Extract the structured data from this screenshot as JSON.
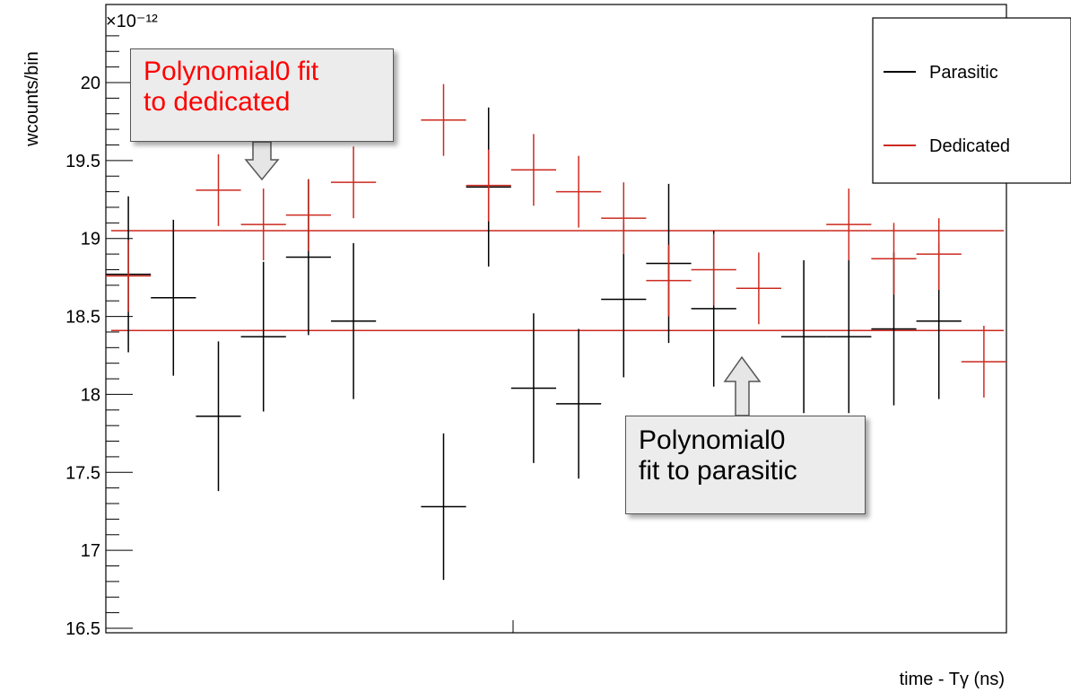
{
  "chart_data": {
    "type": "scatter",
    "title": "",
    "xlabel": "time - Tγ (ns)",
    "ylabel": "wcounts/bin",
    "y_exponent": "×10⁻¹²",
    "ylim": [
      16.45,
      20.35
    ],
    "y_ticks": [
      "16.5",
      "17",
      "17.5",
      "18",
      "18.5",
      "19",
      "19.5",
      "20"
    ],
    "n_bins": 20,
    "grid": false,
    "legend_position": "top-right",
    "series": [
      {
        "name": "Parasitic",
        "color": "#000000",
        "values": [
          18.77,
          18.62,
          17.86,
          18.37,
          18.88,
          18.47,
          17.28,
          19.33,
          18.04,
          17.94,
          18.61,
          18.84,
          18.55,
          18.37,
          18.37,
          18.42,
          18.47
        ],
        "errors": [
          0.5,
          0.5,
          0.48,
          0.48,
          0.5,
          0.5,
          0.47,
          0.51,
          0.48,
          0.48,
          0.5,
          0.51,
          0.5,
          0.49,
          0.49,
          0.49,
          0.5
        ],
        "bins": [
          0,
          1,
          2,
          3,
          4,
          5,
          7,
          8,
          9,
          10,
          11,
          12,
          13,
          15,
          16,
          17,
          18
        ]
      },
      {
        "name": "Dedicated",
        "color": "#cc2a1f",
        "values": [
          18.76,
          19.31,
          19.09,
          19.15,
          19.36,
          19.76,
          19.34,
          19.44,
          19.3,
          19.13,
          18.73,
          18.8,
          18.68,
          19.09,
          18.87,
          18.9,
          18.21
        ],
        "errors": [
          0.23,
          0.23,
          0.23,
          0.23,
          0.23,
          0.23,
          0.23,
          0.23,
          0.23,
          0.23,
          0.23,
          0.23,
          0.23,
          0.23,
          0.23,
          0.23,
          0.23
        ],
        "bins": [
          0,
          2,
          3,
          4,
          5,
          7,
          8,
          9,
          10,
          11,
          12,
          13,
          14,
          16,
          17,
          18,
          19
        ]
      }
    ],
    "fits": [
      {
        "name": "Polynomial0 fit to dedicated",
        "value": 19.05,
        "color": "#cc2a1f"
      },
      {
        "name": "Polynomial0 fit to parasitic",
        "value": 18.41,
        "color": "#cc2a1f"
      }
    ],
    "legend": [
      {
        "label": "Parasitic",
        "color": "#000000"
      },
      {
        "label": "Dedicated",
        "color": "#cc2a1f"
      }
    ],
    "annotations": [
      {
        "lines": [
          "Polynomial0 fit",
          "to dedicated"
        ],
        "color": "#ff0000"
      },
      {
        "lines": [
          "Polynomial0",
          "fit to parasitic"
        ],
        "color": "#000000"
      }
    ]
  }
}
